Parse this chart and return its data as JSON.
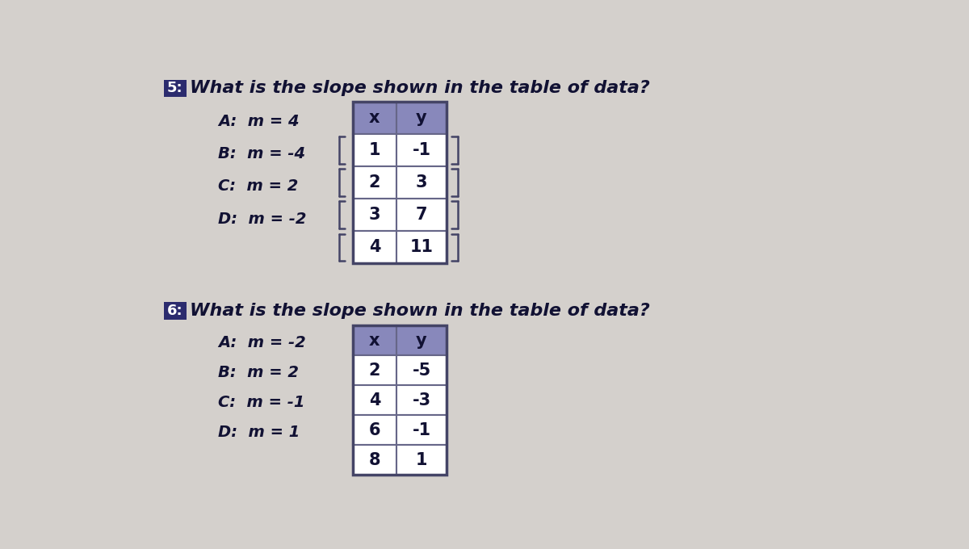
{
  "background_color": "#d4d0cc",
  "q5_question": "What is the slope shown in the table of data?",
  "q5_num_bg": "#2b2b6e",
  "q5_num_text": "5:",
  "q5_choices": [
    "A:  m = 4",
    "B:  m = -4",
    "C:  m = 2",
    "D:  m = -2"
  ],
  "q5_table_header": [
    "x",
    "y"
  ],
  "q5_table_data": [
    [
      "1",
      "-1"
    ],
    [
      "2",
      "3"
    ],
    [
      "3",
      "7"
    ],
    [
      "4",
      "11"
    ]
  ],
  "q5_header_bg": "#8888bb",
  "q5_header_text_color": "#111133",
  "q5_table_bg": "#ffffff",
  "q5_table_text_color": "#111133",
  "q6_question": "What is the slope shown in the table of data?",
  "q6_num_bg": "#2b2b6e",
  "q6_num_text": "6:",
  "q6_choices": [
    "A:  m = -2",
    "B:  m = 2",
    "C:  m = -1",
    "D:  m = 1"
  ],
  "q6_table_header": [
    "x",
    "y"
  ],
  "q6_table_data": [
    [
      "2",
      "-5"
    ],
    [
      "4",
      "-3"
    ],
    [
      "6",
      "-1"
    ],
    [
      "8",
      "1"
    ]
  ],
  "q6_header_bg": "#8888bb",
  "q6_header_text_color": "#111133",
  "q6_table_bg": "#ffffff",
  "q6_table_text_color": "#111133",
  "text_color": "#111133",
  "question_fontsize": 16,
  "choice_fontsize": 14,
  "table_fontsize": 15,
  "badge_fontsize": 13
}
